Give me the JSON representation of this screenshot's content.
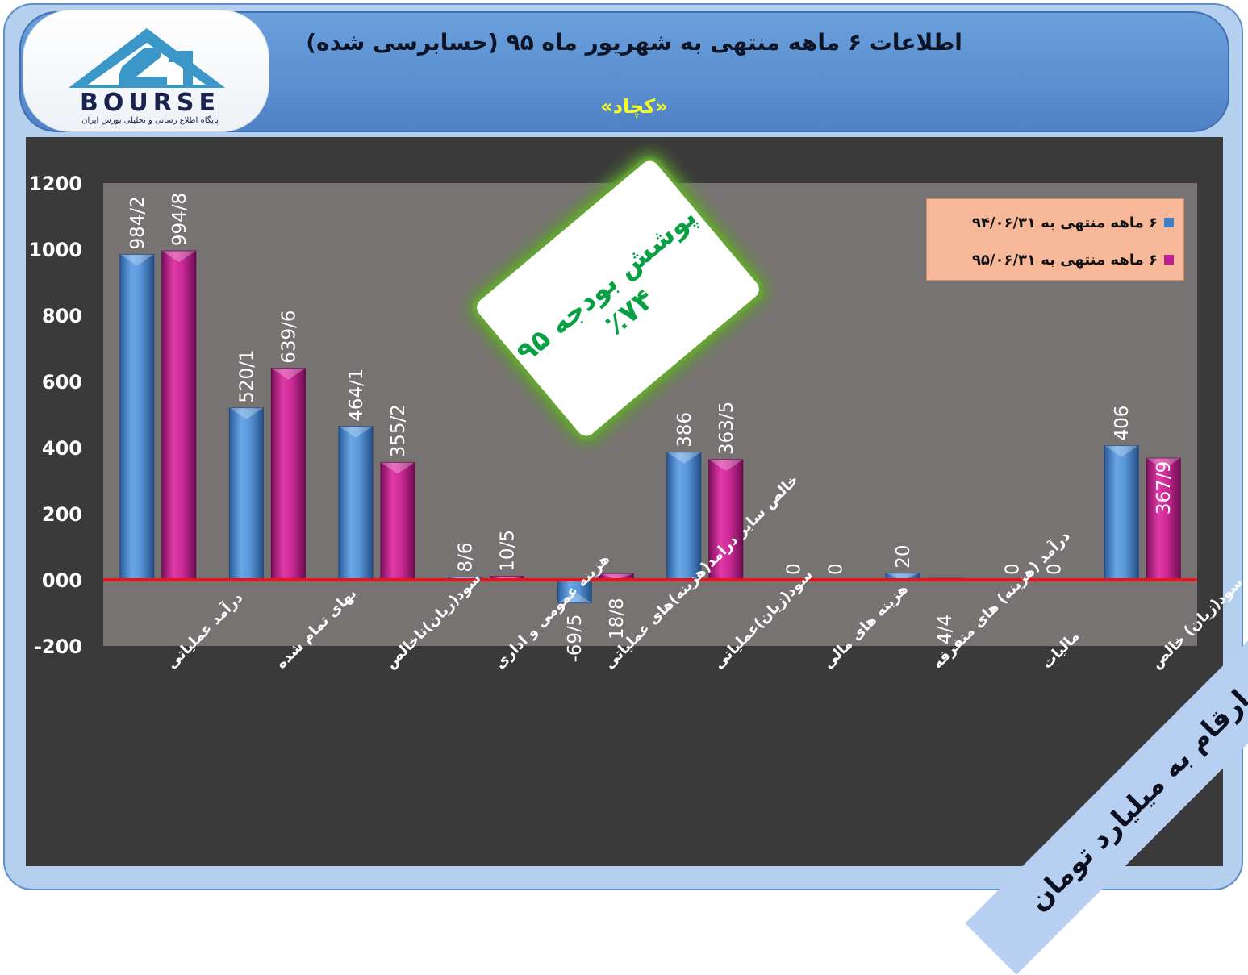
{
  "header": {
    "title": "اطلاعات ۶ ماهه منتهی به شهریور ماه ۹۵ (حسابرسی شده)",
    "company": "«کچاد»",
    "logo_text": "BOURSE",
    "logo_subtitle": "پایگاه اطلاع رسانی و تحلیلی بورس ایران"
  },
  "badge": {
    "line1": "پوشش بودجه ۹۵",
    "line2": "٪۷۴"
  },
  "units_note": "ارقام به میلیارد تومان",
  "colors": {
    "series1": "#4f8ad0",
    "series2": "#c0208f",
    "zero_line": "#e8141c",
    "plot_bg": "#787373",
    "legend_bg": "#f7b89a"
  },
  "chart_data": {
    "type": "bar",
    "categories": [
      "درآمد عملیاتی",
      "بهای تمام شده",
      "سود(زیان)ناخالص",
      "هزینه عمومی و اداری",
      "خالص سایر درامد(هزینه)های عملیاتی",
      "سود(زیان)عملیاتی",
      "هزینه های مالی",
      "درآمد (هزینه) های متفرقه",
      "مالیات",
      "سود(زیان) خالص"
    ],
    "series": [
      {
        "name": "۶ ماهه منتهی به ۹۴/۰۶/۳۱",
        "values": [
          984.2,
          520.1,
          464.1,
          8.6,
          -69.5,
          386,
          0,
          20,
          0,
          406
        ],
        "labels": [
          "984/2",
          "520/1",
          "464/1",
          "8/6",
          "-69/5",
          "386",
          "0",
          "20",
          "0",
          "406"
        ]
      },
      {
        "name": "۶ ماهه منتهی به ۹۵/۰۶/۳۱",
        "values": [
          994.8,
          639.6,
          355.2,
          10.5,
          18.8,
          363.5,
          0,
          4.4,
          0,
          367.9
        ],
        "labels": [
          "994/8",
          "639/6",
          "355/2",
          "10/5",
          "18/8",
          "363/5",
          "0",
          "4/4",
          "0",
          "367/9"
        ]
      }
    ],
    "ylim": [
      -200,
      1200
    ],
    "yticks": [
      "-200",
      "000",
      "200",
      "400",
      "600",
      "800",
      "1000",
      "1200"
    ],
    "grid": false,
    "legend_position": "top-right"
  }
}
